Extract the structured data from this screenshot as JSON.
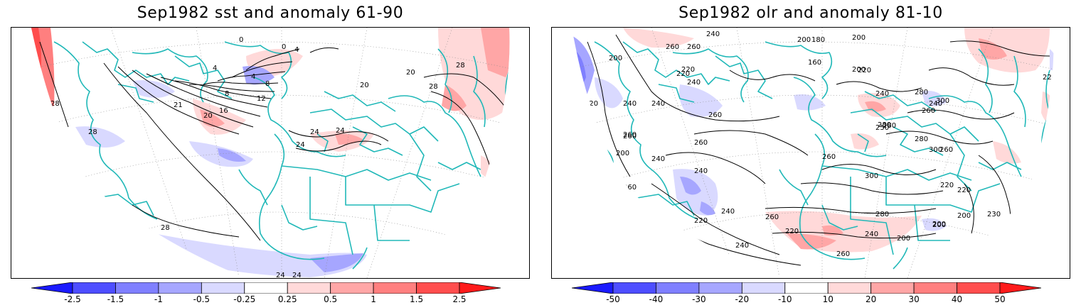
{
  "left_panel": {
    "title": "Sep1982 sst and anomaly 61-90",
    "colorbar": {
      "ticks": [
        "-2.5",
        "-1.5",
        "-1",
        "-0.5",
        "-0.25",
        "0.25",
        "0.5",
        "1",
        "1.5",
        "2.5"
      ],
      "colors": [
        "#1a1aff",
        "#4d4dff",
        "#7f7fff",
        "#a6a6ff",
        "#d9d9ff",
        "#ffffff",
        "#ffd9d9",
        "#ffa6a6",
        "#ff7f7f",
        "#ff4d4d",
        "#ff1a1a"
      ]
    },
    "contour_labels": [
      "28",
      "28",
      "28",
      "28",
      "24",
      "24",
      "24",
      "24",
      "21",
      "20",
      "16",
      "12",
      "8",
      "8",
      "4",
      "4",
      "4",
      "0",
      "0",
      "20",
      "20",
      "28",
      "24"
    ]
  },
  "right_panel": {
    "title": "Sep1982 olr and anomaly 81-10",
    "colorbar": {
      "ticks": [
        "-50",
        "-40",
        "-30",
        "-20",
        "-10",
        "10",
        "20",
        "30",
        "40",
        "50"
      ],
      "colors": [
        "#1a1aff",
        "#4d4dff",
        "#7f7fff",
        "#a6a6ff",
        "#d9d9ff",
        "#ffffff",
        "#ffd9d9",
        "#ffa6a6",
        "#ff7f7f",
        "#ff4d4d",
        "#ff1a1a"
      ]
    },
    "contour_labels": [
      "260",
      "240",
      "220",
      "200",
      "260",
      "220",
      "200",
      "180",
      "200",
      "160",
      "240",
      "220",
      "200",
      "240",
      "260",
      "220",
      "240",
      "260",
      "280",
      "240",
      "240",
      "220",
      "260",
      "240",
      "260",
      "280",
      "300",
      "260",
      "300",
      "250",
      "260",
      "280",
      "260",
      "240",
      "200",
      "240",
      "260",
      "300",
      "280",
      "260",
      "220",
      "200",
      "260",
      "220",
      "240",
      "220",
      "240",
      "280",
      "200",
      "200",
      "220",
      "240",
      "260",
      "220",
      "230",
      "200"
    ]
  }
}
